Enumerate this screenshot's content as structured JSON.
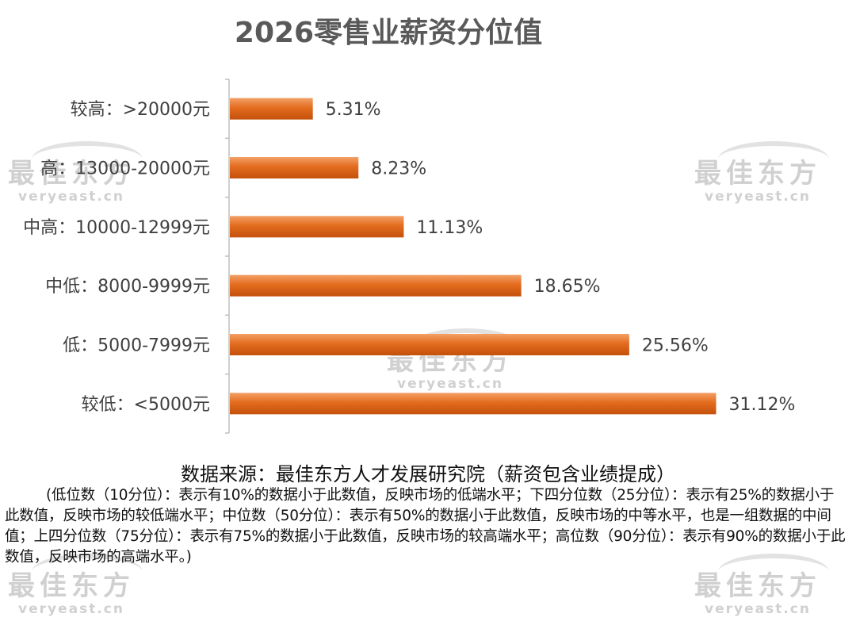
{
  "title": "2026零售业薪资分位值",
  "chart_data": {
    "type": "bar",
    "orientation": "horizontal",
    "categories": [
      "较高：>20000元",
      "高：13000-20000元",
      "中高：10000-12999元",
      "中低：8000-9999元",
      "低：5000-7999元",
      "较低：<5000元"
    ],
    "values": [
      5.31,
      8.23,
      11.13,
      18.65,
      25.56,
      31.12
    ],
    "data_labels": [
      "5.31%",
      "8.23%",
      "11.13%",
      "18.65%",
      "25.56%",
      "31.12%"
    ],
    "bar_color": "#E36C1E",
    "xlim": [
      0,
      35
    ],
    "grid": false,
    "legend": "none"
  },
  "source": "数据来源：最佳东方人才发展研究院（薪资包含业绩提成）",
  "note": "(低位数（10分位）：表示有10%的数据小于此数值，反映市场的低端水平；下四分位数（25分位）：表示有25%的数据小于此数值，反映市场的较低端水平；中位数（50分位）：表示有50%的数据小于此数值，反映市场的中等水平，也是一组数据的中间值；上四分位数（75分位）：表示有75%的数据小于此数值，反映市场的较高端水平；高位数（90分位）：表示有90%的数据小于此数值，反映市场的高端水平。)",
  "watermark": {
    "cn": "最佳东方",
    "en": "veryeast.cn"
  }
}
